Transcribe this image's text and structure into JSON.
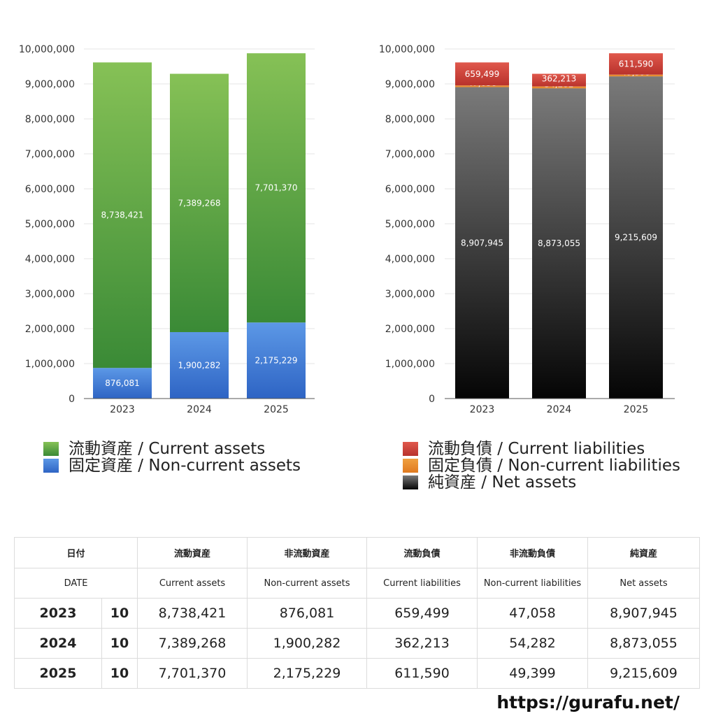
{
  "chart_data": [
    {
      "type": "bar",
      "stacked": true,
      "categories": [
        "2023",
        "2024",
        "2025"
      ],
      "series": [
        {
          "name": "固定資産 / Non-current assets",
          "values": [
            876081,
            1900282,
            2175229
          ],
          "color_top": "#5c98e6",
          "color_bottom": "#2e64c4"
        },
        {
          "name": "流動資産 / Current assets",
          "values": [
            8738421,
            7389268,
            7701370
          ],
          "color_top": "#86c156",
          "color_bottom": "#3a8a36"
        }
      ],
      "y_ticks": [
        "0",
        "1,000,000",
        "2,000,000",
        "3,000,000",
        "4,000,000",
        "5,000,000",
        "6,000,000",
        "7,000,000",
        "8,000,000",
        "9,000,000",
        "10,000,000"
      ],
      "data_labels": {
        "固定資産 / Non-current assets": [
          "876,081",
          "1,900,282",
          "2,175,229"
        ],
        "流動資産 / Current assets": [
          "8,738,421",
          "7,389,268",
          "7,701,370"
        ]
      },
      "ylim": [
        0,
        10000000
      ],
      "grid": true
    },
    {
      "type": "bar",
      "stacked": true,
      "categories": [
        "2023",
        "2024",
        "2025"
      ],
      "series": [
        {
          "name": "純資産 / Net assets",
          "values": [
            8907945,
            8873055,
            9215609
          ],
          "color_top": "#7a7a7a",
          "color_bottom": "#050505"
        },
        {
          "name": "固定負債 / Non-current liabilities",
          "values": [
            47058,
            54282,
            49399
          ],
          "color_top": "#f0a040",
          "color_bottom": "#e07a20"
        },
        {
          "name": "流動負債 / Current liabilities",
          "values": [
            659499,
            362213,
            611590
          ],
          "color_top": "#e0584c",
          "color_bottom": "#b8322c"
        }
      ],
      "y_ticks": [
        "0",
        "1,000,000",
        "2,000,000",
        "3,000,000",
        "4,000,000",
        "5,000,000",
        "6,000,000",
        "7,000,000",
        "8,000,000",
        "9,000,000",
        "10,000,000"
      ],
      "data_labels": {
        "純資産 / Net assets": [
          "8,907,945",
          "8,873,055",
          "9,215,609"
        ],
        "固定負債 / Non-current liabilities": [
          "47,058",
          "54,282",
          "49,399"
        ],
        "流動負債 / Current liabilities": [
          "659,499",
          "362,213",
          "611,590"
        ]
      },
      "ylim": [
        0,
        10000000
      ],
      "grid": true
    }
  ],
  "legend_left": [
    {
      "label": "流動資産 / Current assets",
      "color": "#55a845"
    },
    {
      "label": "固定資産 / Non-current assets",
      "color": "#4a86dc"
    }
  ],
  "legend_right": [
    {
      "label": "流動負債 / Current liabilities",
      "color": "#d94a40"
    },
    {
      "label": "固定負債 / Non-current liabilities",
      "color": "#e8892e"
    },
    {
      "label": "純資産 / Net assets",
      "color": "#222222"
    }
  ],
  "table": {
    "header_jp": [
      "日付",
      "流動資産",
      "非流動資産",
      "流動負債",
      "非流動負債",
      "純資産"
    ],
    "header_en": [
      "DATE",
      "Current assets",
      "Non-current assets",
      "Current liabilities",
      "Non-current liabilities",
      "Net assets"
    ],
    "rows": [
      {
        "year": "2023",
        "month": "10",
        "values": [
          "8,738,421",
          "876,081",
          "659,499",
          "47,058",
          "8,907,945"
        ]
      },
      {
        "year": "2024",
        "month": "10",
        "values": [
          "7,389,268",
          "1,900,282",
          "362,213",
          "54,282",
          "8,873,055"
        ]
      },
      {
        "year": "2025",
        "month": "10",
        "values": [
          "7,701,370",
          "2,175,229",
          "611,590",
          "49,399",
          "9,215,609"
        ]
      }
    ]
  },
  "footer": "https://gurafu.net/"
}
